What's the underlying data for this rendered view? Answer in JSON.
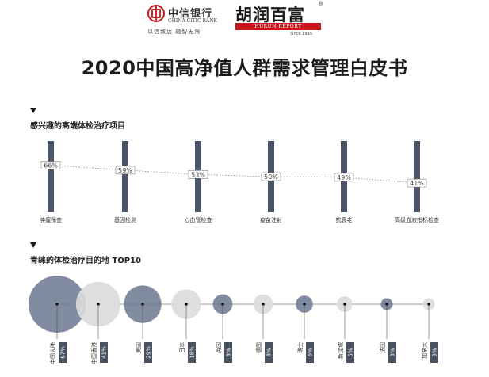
{
  "header": {
    "citic_name_cn": "中信银行",
    "citic_name_en": "CHINA CITIC BANK",
    "citic_slogan": "以信致远  融智无限",
    "hurun_name_cn": "胡润百富",
    "hurun_registered": "®",
    "hurun_name_en": "HURUN REPORT",
    "hurun_since": "Since 1999"
  },
  "title": "2020中国高净值人群需求管理白皮书",
  "colors": {
    "bar": "#4a5668",
    "bar_dark": "#3e4a5c",
    "brand_red": "#c8161d",
    "bubble_light": "#dcdcdc",
    "bubble_dark": "#6c7891"
  },
  "chart_data": [
    {
      "type": "bar",
      "title": "感兴趣的高端体检治疗项目",
      "categories": [
        "肿瘤筛查",
        "基因检测",
        "心血管检查",
        "疫苗注射",
        "抗衰老",
        "高级血液指标检查"
      ],
      "values": [
        66,
        59,
        53,
        50,
        49,
        41
      ],
      "value_labels": [
        "66%",
        "59%",
        "53%",
        "50%",
        "49%",
        "41%"
      ],
      "ylim": [
        0,
        100
      ],
      "trend_line": "dotted"
    },
    {
      "type": "scatter",
      "title": "青睐的体检治疗目的地 TOP10",
      "categories": [
        "中国大陆",
        "中国香港",
        "美国",
        "日本",
        "英国",
        "德国",
        "瑞士",
        "新加坡",
        "法国",
        "加拿大"
      ],
      "values": [
        67,
        41,
        29,
        18,
        8,
        8,
        6,
        5,
        3,
        3
      ],
      "value_labels": [
        "67%",
        "41%",
        "29%",
        "18%",
        "8%",
        "8%",
        "6%",
        "5%",
        "3%",
        "3%"
      ],
      "bubble_shades": [
        "dark",
        "light",
        "dark",
        "light",
        "dark",
        "light",
        "dark",
        "light",
        "dark",
        "light"
      ]
    }
  ]
}
